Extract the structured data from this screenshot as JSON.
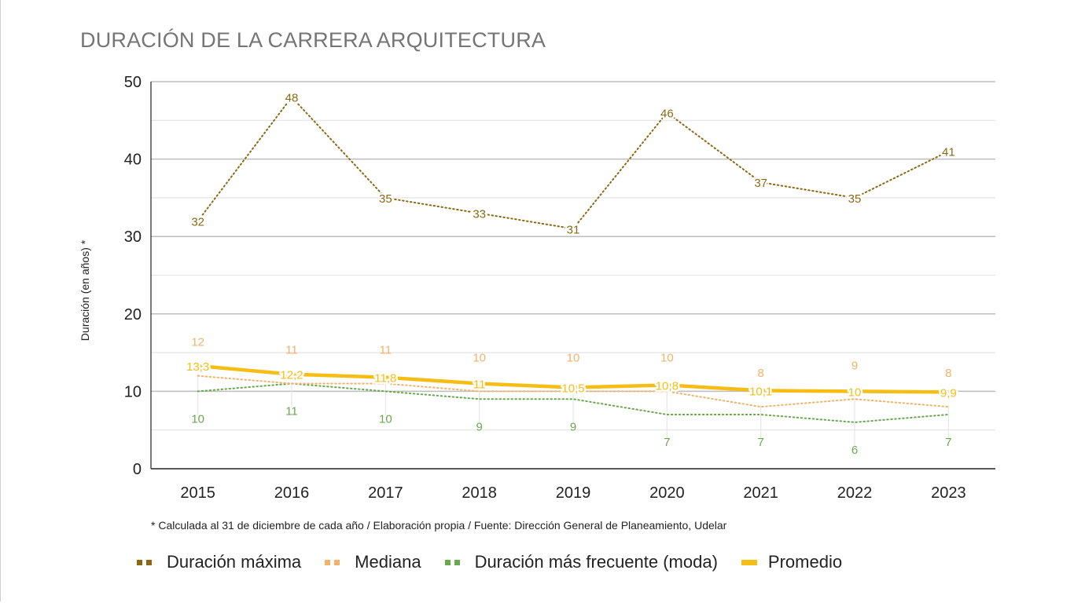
{
  "chart_data": {
    "type": "line",
    "title": "DURACIÓN DE LA CARRERA ARQUITECTURA",
    "ylabel": "Duración (en años) *",
    "xlabel": "",
    "categories": [
      "2015",
      "2016",
      "2017",
      "2018",
      "2019",
      "2020",
      "2021",
      "2022",
      "2023"
    ],
    "ylim": [
      0,
      50
    ],
    "yticks": [
      0,
      10,
      20,
      30,
      40,
      50
    ],
    "grid": true,
    "legend_position": "bottom",
    "series": [
      {
        "name": "Duración máxima",
        "style": "dotted",
        "color": "#8B6914",
        "values": [
          32,
          48,
          35,
          33,
          31,
          46,
          37,
          35,
          41
        ],
        "labels": [
          "32",
          "48",
          "35",
          "33",
          "31",
          "46",
          "37",
          "35",
          "41"
        ]
      },
      {
        "name": "Mediana",
        "style": "dotted",
        "color": "#F4B169",
        "values": [
          12,
          11,
          11,
          10,
          10,
          10,
          8,
          9,
          8
        ],
        "labels": [
          "12",
          "11",
          "11",
          "10",
          "10",
          "10",
          "8",
          "9",
          "8"
        ]
      },
      {
        "name": "Duración más frecuente (moda)",
        "style": "dotted",
        "color": "#6AA84F",
        "values": [
          10,
          11,
          10,
          9,
          9,
          7,
          7,
          6,
          7
        ],
        "labels": [
          "10",
          "11",
          "10",
          "9",
          "9",
          "7",
          "7",
          "6",
          "7"
        ]
      },
      {
        "name": "Promedio",
        "style": "solid",
        "color": "#F6BE14",
        "values": [
          13.3,
          12.2,
          11.8,
          11,
          10.5,
          10.8,
          10.1,
          10,
          9.9
        ],
        "labels": [
          "13,3",
          "12,2",
          "11,8",
          "11",
          "10,5",
          "10,8",
          "10,1",
          "10",
          "9,9"
        ]
      }
    ],
    "footnote": "* Calculada al 31 de diciembre de cada año / Elaboración propia / Fuente: Dirección General de Planeamiento, Udelar"
  }
}
